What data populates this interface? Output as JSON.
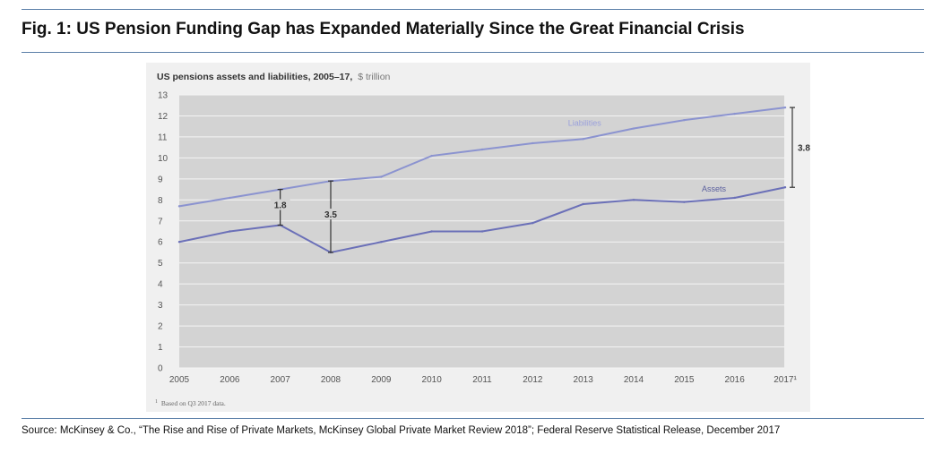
{
  "figure": {
    "title": "Fig. 1: US Pension Funding Gap has Expanded Materially Since the Great Financial Crisis",
    "source": "Source: McKinsey & Co., “The Rise and Rise of Private Markets, McKinsey Global Private Market Review 2018”; Federal Reserve Statistical Release, December 2017"
  },
  "chart_data": {
    "type": "line",
    "title": "US pensions assets and liabilities, 2005–17,",
    "subtitle_unit": "$ trillion",
    "footnote": "Based on Q3 2017 data.",
    "footnote_marker": "1",
    "x": [
      "2005",
      "2006",
      "2007",
      "2008",
      "2009",
      "2010",
      "2011",
      "2012",
      "2013",
      "2014",
      "2015",
      "2016",
      "2017"
    ],
    "x_tick_labels": [
      "2005",
      "2006",
      "2007",
      "2008",
      "2009",
      "2010",
      "2011",
      "2012",
      "2013",
      "2014",
      "2015",
      "2016",
      "2017¹"
    ],
    "y_ticks": [
      "0",
      "1",
      "2",
      "3",
      "4",
      "5",
      "6",
      "7",
      "8",
      "9",
      "10",
      "11",
      "12",
      "13"
    ],
    "ylim": [
      0,
      13
    ],
    "grid": true,
    "series": [
      {
        "name": "Liabilities",
        "color": "#8b93d0",
        "values": [
          7.7,
          8.1,
          8.5,
          8.9,
          9.1,
          10.1,
          10.4,
          10.7,
          10.9,
          11.4,
          11.8,
          12.1,
          12.4
        ]
      },
      {
        "name": "Assets",
        "color": "#6b70b8",
        "values": [
          6.0,
          6.5,
          6.8,
          5.5,
          6.0,
          6.5,
          6.5,
          6.9,
          7.8,
          8.0,
          7.9,
          8.1,
          8.6
        ]
      }
    ],
    "annotations": [
      {
        "label": "1.8",
        "x": "2007",
        "from": 6.8,
        "to": 8.5
      },
      {
        "label": "3.5",
        "x": "2008",
        "from": 5.5,
        "to": 8.9
      },
      {
        "label": "3.8",
        "x": "2017",
        "from": 8.6,
        "to": 12.4
      }
    ]
  }
}
